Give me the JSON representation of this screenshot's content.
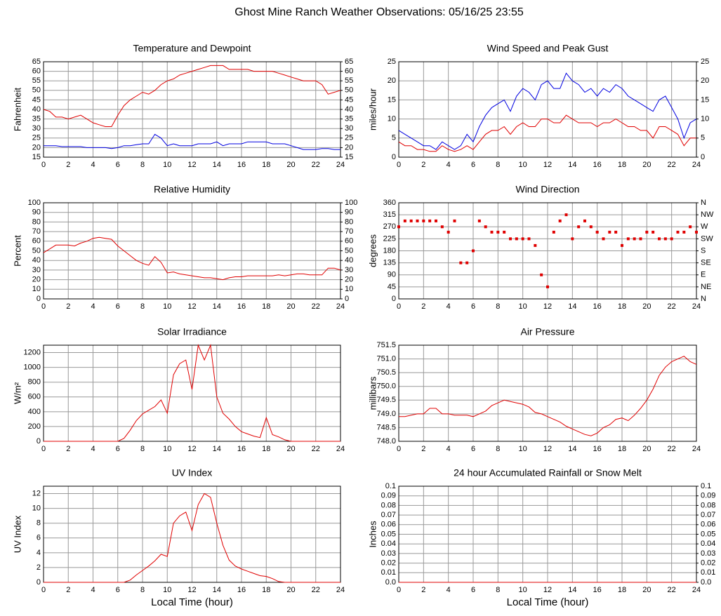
{
  "title": "Ghost Mine Ranch Weather Observations: 05/16/25 23:55",
  "chart_data": [
    {
      "type": "line",
      "title": "Temperature and Dewpoint",
      "ylabel": "Fahrenheit",
      "x": [
        0,
        0.5,
        1,
        1.5,
        2,
        2.5,
        3,
        3.5,
        4,
        4.5,
        5,
        5.5,
        6,
        6.5,
        7,
        7.5,
        8,
        8.5,
        9,
        9.5,
        10,
        10.5,
        11,
        11.5,
        12,
        12.5,
        13,
        13.5,
        14,
        14.5,
        15,
        15.5,
        16,
        16.5,
        17,
        17.5,
        18,
        18.5,
        19,
        19.5,
        20,
        20.5,
        21,
        21.5,
        22,
        22.5,
        23,
        23.5,
        24
      ],
      "series": [
        {
          "color": "#e00000",
          "values": [
            40,
            39,
            36,
            36,
            35,
            36,
            37,
            35,
            33,
            32,
            31,
            31,
            37,
            42,
            45,
            47,
            49,
            48,
            50,
            53,
            55,
            56,
            58,
            59,
            60,
            61,
            62,
            63,
            63,
            63,
            61,
            61,
            61,
            61,
            60,
            60,
            60,
            60,
            59,
            58,
            57,
            56,
            55,
            55,
            55,
            53,
            48,
            49,
            50
          ]
        },
        {
          "color": "#0000e0",
          "values": [
            21,
            21,
            21,
            20.5,
            20.5,
            20.5,
            20.5,
            20,
            20,
            20,
            20,
            19.5,
            20,
            21,
            21,
            21.5,
            22,
            22,
            27,
            25,
            21,
            22,
            21,
            21,
            21,
            22,
            22,
            22,
            23,
            21,
            22,
            22,
            22,
            23,
            23,
            23,
            23,
            22,
            22,
            22,
            21,
            20,
            19,
            19,
            19,
            19.5,
            19.5,
            19,
            19
          ]
        }
      ],
      "xlim": [
        0,
        24
      ],
      "xticks": [
        0,
        2,
        4,
        6,
        8,
        10,
        12,
        14,
        16,
        18,
        20,
        22,
        24
      ],
      "ylim": [
        15,
        65
      ],
      "yticks": [
        15,
        20,
        25,
        30,
        35,
        40,
        45,
        50,
        55,
        60,
        65
      ],
      "y2lim": [
        15,
        65
      ],
      "y2ticks": [
        15,
        20,
        25,
        30,
        35,
        40,
        45,
        50,
        55,
        60,
        65
      ],
      "grid": true
    },
    {
      "type": "line",
      "title": "Wind Speed and Peak Gust",
      "ylabel": "miles/hour",
      "x": [
        0,
        0.5,
        1,
        1.5,
        2,
        2.5,
        3,
        3.5,
        4,
        4.5,
        5,
        5.5,
        6,
        6.5,
        7,
        7.5,
        8,
        8.5,
        9,
        9.5,
        10,
        10.5,
        11,
        11.5,
        12,
        12.5,
        13,
        13.5,
        14,
        14.5,
        15,
        15.5,
        16,
        16.5,
        17,
        17.5,
        18,
        18.5,
        19,
        19.5,
        20,
        20.5,
        21,
        21.5,
        22,
        22.5,
        23,
        23.5,
        24
      ],
      "series": [
        {
          "color": "#0000e0",
          "values": [
            7,
            6,
            5,
            4,
            3,
            3,
            2,
            4,
            3,
            2,
            3,
            6,
            4,
            8,
            11,
            13,
            14,
            15,
            12,
            16,
            18,
            17,
            15,
            19,
            20,
            18,
            18,
            22,
            20,
            19,
            17,
            18,
            16,
            18,
            17,
            19,
            18,
            16,
            15,
            14,
            13,
            12,
            15,
            16,
            13,
            10,
            5,
            9,
            10
          ]
        },
        {
          "color": "#e00000",
          "values": [
            4,
            3,
            3,
            2,
            2,
            1.5,
            1.5,
            3,
            2,
            1.5,
            2,
            3,
            2,
            4,
            6,
            7,
            7,
            8,
            6,
            8,
            9,
            8,
            8,
            10,
            10,
            9,
            9,
            11,
            10,
            9,
            9,
            9,
            8,
            9,
            9,
            10,
            9,
            8,
            8,
            7,
            7,
            5,
            8,
            8,
            7,
            6,
            3,
            5,
            5
          ]
        }
      ],
      "xlim": [
        0,
        24
      ],
      "xticks": [
        0,
        2,
        4,
        6,
        8,
        10,
        12,
        14,
        16,
        18,
        20,
        22,
        24
      ],
      "ylim": [
        0,
        25
      ],
      "yticks": [
        0,
        5,
        10,
        15,
        20,
        25
      ],
      "y2lim": [
        0,
        25
      ],
      "y2ticks": [
        0,
        5,
        10,
        15,
        20,
        25
      ],
      "grid": true
    },
    {
      "type": "line",
      "title": "Relative Humidity",
      "ylabel": "Percent",
      "x": [
        0,
        0.5,
        1,
        1.5,
        2,
        2.5,
        3,
        3.5,
        4,
        4.5,
        5,
        5.5,
        6,
        6.5,
        7,
        7.5,
        8,
        8.5,
        9,
        9.5,
        10,
        10.5,
        11,
        11.5,
        12,
        12.5,
        13,
        13.5,
        14,
        14.5,
        15,
        15.5,
        16,
        16.5,
        17,
        17.5,
        18,
        18.5,
        19,
        19.5,
        20,
        20.5,
        21,
        21.5,
        22,
        22.5,
        23,
        23.5,
        24
      ],
      "series": [
        {
          "color": "#e00000",
          "values": [
            48,
            52,
            56,
            56,
            56,
            55,
            58,
            60,
            63,
            64,
            63,
            62,
            55,
            50,
            45,
            40,
            37,
            35,
            44,
            38,
            27,
            28,
            26,
            25,
            24,
            23,
            22,
            22,
            21,
            20,
            22,
            23,
            23,
            24,
            24,
            24,
            24,
            24,
            25,
            24,
            25,
            26,
            26,
            25,
            25,
            25,
            32,
            32,
            30
          ]
        }
      ],
      "xlim": [
        0,
        24
      ],
      "xticks": [
        0,
        2,
        4,
        6,
        8,
        10,
        12,
        14,
        16,
        18,
        20,
        22,
        24
      ],
      "ylim": [
        0,
        100
      ],
      "yticks": [
        0,
        10,
        20,
        30,
        40,
        50,
        60,
        70,
        80,
        90,
        100
      ],
      "y2lim": [
        0,
        100
      ],
      "y2ticks": [
        0,
        10,
        20,
        30,
        40,
        50,
        60,
        70,
        80,
        90,
        100
      ],
      "grid": true
    },
    {
      "type": "scatter",
      "title": "Wind Direction",
      "ylabel": "degrees",
      "x": [
        0,
        0.5,
        1,
        1.5,
        2,
        2.5,
        3,
        3.5,
        4,
        4.5,
        5,
        5.5,
        6,
        6.5,
        7,
        7.5,
        8,
        8.5,
        9,
        9.5,
        10,
        10.5,
        11,
        11.5,
        12,
        12.5,
        13,
        13.5,
        14,
        14.5,
        15,
        15.5,
        16,
        16.5,
        17,
        17.5,
        18,
        18.5,
        19,
        19.5,
        20,
        20.5,
        21,
        21.5,
        22,
        22.5,
        23,
        23.5,
        24
      ],
      "series": [
        {
          "color": "#e00000",
          "values": [
            270,
            292,
            292,
            292,
            292,
            292,
            292,
            270,
            250,
            292,
            135,
            135,
            180,
            292,
            270,
            250,
            250,
            250,
            225,
            225,
            225,
            225,
            200,
            90,
            45,
            250,
            292,
            315,
            225,
            270,
            292,
            270,
            250,
            225,
            250,
            250,
            200,
            225,
            225,
            225,
            250,
            250,
            225,
            225,
            225,
            250,
            250,
            270,
            250
          ]
        }
      ],
      "xlim": [
        0,
        24
      ],
      "xticks": [
        0,
        2,
        4,
        6,
        8,
        10,
        12,
        14,
        16,
        18,
        20,
        22,
        24
      ],
      "ylim": [
        0,
        360
      ],
      "yticks": [
        0,
        45,
        90,
        135,
        180,
        225,
        270,
        315,
        360
      ],
      "y2lim": [
        0,
        360
      ],
      "y2ticks": [
        {
          "value": 0,
          "label": "N"
        },
        {
          "value": 45,
          "label": "NE"
        },
        {
          "value": 90,
          "label": "E"
        },
        {
          "value": 135,
          "label": "SE"
        },
        {
          "value": 180,
          "label": "S"
        },
        {
          "value": 225,
          "label": "SW"
        },
        {
          "value": 270,
          "label": "W"
        },
        {
          "value": 315,
          "label": "NW"
        },
        {
          "value": 360,
          "label": "N"
        }
      ],
      "grid": true
    },
    {
      "type": "line",
      "title": "Solar Irradiance",
      "ylabel": "W/m²",
      "x": [
        0,
        0.5,
        1,
        1.5,
        2,
        2.5,
        3,
        3.5,
        4,
        4.5,
        5,
        5.5,
        6,
        6.5,
        7,
        7.5,
        8,
        8.5,
        9,
        9.5,
        10,
        10.5,
        11,
        11.5,
        12,
        12.5,
        13,
        13.5,
        14,
        14.5,
        15,
        15.5,
        16,
        16.5,
        17,
        17.5,
        18,
        18.5,
        19,
        19.5,
        20,
        20.5,
        21,
        21.5,
        22,
        22.5,
        23,
        23.5,
        24
      ],
      "series": [
        {
          "color": "#e00000",
          "values": [
            0,
            0,
            0,
            0,
            0,
            0,
            0,
            0,
            0,
            0,
            0,
            0,
            0,
            40,
            150,
            280,
            370,
            420,
            470,
            560,
            380,
            900,
            1050,
            1100,
            700,
            1300,
            1100,
            1300,
            600,
            380,
            300,
            200,
            130,
            100,
            70,
            50,
            320,
            90,
            60,
            20,
            0,
            0,
            0,
            0,
            0,
            0,
            0,
            0,
            0
          ]
        }
      ],
      "xlim": [
        0,
        24
      ],
      "xticks": [
        0,
        2,
        4,
        6,
        8,
        10,
        12,
        14,
        16,
        18,
        20,
        22,
        24
      ],
      "ylim": [
        0,
        1300
      ],
      "yticks": [
        0,
        200,
        400,
        600,
        800,
        1000,
        1200
      ],
      "grid": true
    },
    {
      "type": "line",
      "title": "Air Pressure",
      "ylabel": "millibars",
      "x": [
        0,
        0.5,
        1,
        1.5,
        2,
        2.5,
        3,
        3.5,
        4,
        4.5,
        5,
        5.5,
        6,
        6.5,
        7,
        7.5,
        8,
        8.5,
        9,
        9.5,
        10,
        10.5,
        11,
        11.5,
        12,
        12.5,
        13,
        13.5,
        14,
        14.5,
        15,
        15.5,
        16,
        16.5,
        17,
        17.5,
        18,
        18.5,
        19,
        19.5,
        20,
        20.5,
        21,
        21.5,
        22,
        22.5,
        23,
        23.5,
        24
      ],
      "series": [
        {
          "color": "#e00000",
          "values": [
            748.9,
            748.9,
            748.95,
            749.0,
            749.0,
            749.2,
            749.2,
            749.0,
            749.0,
            748.95,
            748.95,
            748.95,
            748.9,
            749.0,
            749.1,
            749.3,
            749.4,
            749.5,
            749.45,
            749.4,
            749.35,
            749.25,
            749.05,
            749.0,
            748.9,
            748.8,
            748.7,
            748.55,
            748.45,
            748.35,
            748.25,
            748.2,
            748.3,
            748.5,
            748.6,
            748.8,
            748.85,
            748.75,
            748.95,
            749.2,
            749.5,
            749.9,
            750.4,
            750.7,
            750.9,
            751.0,
            751.1,
            750.9,
            750.8
          ]
        }
      ],
      "xlim": [
        0,
        24
      ],
      "xticks": [
        0,
        2,
        4,
        6,
        8,
        10,
        12,
        14,
        16,
        18,
        20,
        22,
        24
      ],
      "ylim": [
        748,
        751.5
      ],
      "yticks": [
        {
          "value": 748,
          "label": "748.0"
        },
        748.5,
        {
          "value": 749,
          "label": "749.0"
        },
        749.5,
        {
          "value": 750,
          "label": "750.0"
        },
        750.5,
        {
          "value": 751,
          "label": "751.0"
        },
        751.5
      ],
      "grid": true
    },
    {
      "type": "line",
      "title": "UV Index",
      "ylabel": "UV Index",
      "xlabel": "Local Time (hour)",
      "x": [
        0,
        0.5,
        1,
        1.5,
        2,
        2.5,
        3,
        3.5,
        4,
        4.5,
        5,
        5.5,
        6,
        6.5,
        7,
        7.5,
        8,
        8.5,
        9,
        9.5,
        10,
        10.5,
        11,
        11.5,
        12,
        12.5,
        13,
        13.5,
        14,
        14.5,
        15,
        15.5,
        16,
        16.5,
        17,
        17.5,
        18,
        18.5,
        19,
        19.5,
        20,
        20.5,
        21,
        21.5,
        22,
        22.5,
        23,
        23.5,
        24
      ],
      "series": [
        {
          "color": "#e00000",
          "values": [
            0,
            0,
            0,
            0,
            0,
            0,
            0,
            0,
            0,
            0,
            0,
            0,
            0,
            0,
            0.3,
            1,
            1.6,
            2.2,
            2.9,
            3.8,
            3.5,
            8,
            9,
            9.5,
            7,
            10.5,
            12,
            11.5,
            8,
            5,
            3,
            2.2,
            1.8,
            1.5,
            1.2,
            0.9,
            0.8,
            0.5,
            0.1,
            0,
            0,
            0,
            0,
            0,
            0,
            0,
            0,
            0,
            0
          ]
        }
      ],
      "xlim": [
        0,
        24
      ],
      "xticks": [
        0,
        2,
        4,
        6,
        8,
        10,
        12,
        14,
        16,
        18,
        20,
        22,
        24
      ],
      "ylim": [
        0,
        13
      ],
      "yticks": [
        0,
        2,
        4,
        6,
        8,
        10,
        12
      ],
      "grid": true
    },
    {
      "type": "line",
      "title": "24 hour Accumulated Rainfall or Snow Melt",
      "ylabel": "Inches",
      "xlabel": "Local Time (hour)",
      "x": [
        0,
        24
      ],
      "series": [
        {
          "color": "#e00000",
          "values": [
            0,
            0
          ]
        }
      ],
      "xlim": [
        0,
        24
      ],
      "xticks": [
        0,
        2,
        4,
        6,
        8,
        10,
        12,
        14,
        16,
        18,
        20,
        22,
        24
      ],
      "ylim": [
        0,
        0.1
      ],
      "yticks": [
        {
          "value": 0,
          "label": "0.0"
        },
        0.01,
        0.02,
        0.03,
        0.04,
        0.05,
        0.06,
        0.07,
        0.08,
        0.09,
        0.1
      ],
      "y2lim": [
        0,
        0.1
      ],
      "y2ticks": [
        {
          "value": 0,
          "label": "0.0"
        },
        0.01,
        0.02,
        0.03,
        0.04,
        0.05,
        0.06,
        0.07,
        0.08,
        0.09,
        0.1
      ],
      "grid": true
    }
  ]
}
